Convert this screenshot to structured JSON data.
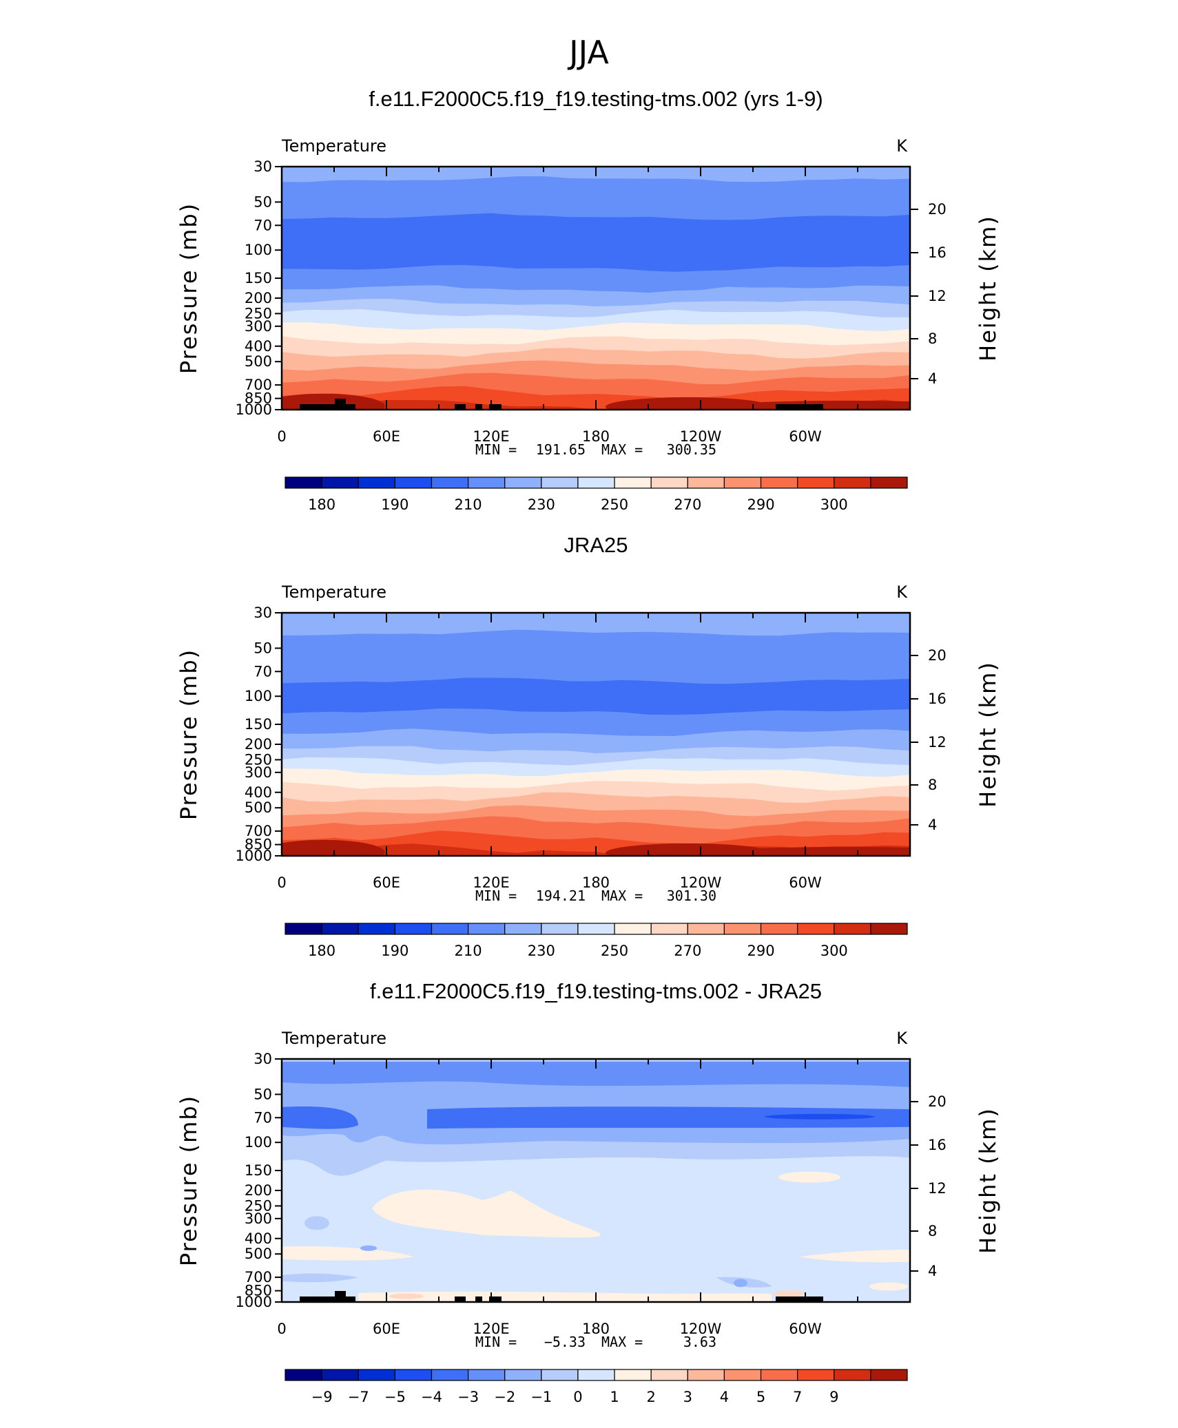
{
  "figure": {
    "title": "JJA"
  },
  "colors": {
    "palette": [
      "#00007f",
      "#0016a8",
      "#0030d4",
      "#1d4ff0",
      "#3f6ff7",
      "#6590f9",
      "#8fb0fb",
      "#b6cdfc",
      "#d6e6fe",
      "#fff1e4",
      "#fed8c4",
      "#fdb79a",
      "#fb9270",
      "#f86d4a",
      "#f24a25",
      "#d32e12",
      "#a91808",
      "#7b0a04"
    ],
    "topo": "#000000",
    "frame": "#000000"
  },
  "chart_data": [
    {
      "type": "heatmap",
      "title": "f.e11.F2000C5.f19_f19.testing-tms.002 (yrs 1-9)",
      "variable": "Temperature",
      "units": "K",
      "ylabel": "Pressure (mb)",
      "ylabel_right": "Height (km)",
      "x_ticks": [
        "0",
        "60E",
        "120E",
        "180",
        "120W",
        "60W"
      ],
      "x_range": [
        0,
        360
      ],
      "y_ticks": [
        30,
        50,
        70,
        100,
        150,
        200,
        250,
        300,
        400,
        500,
        700,
        850,
        1000
      ],
      "y_range": [
        1000,
        30
      ],
      "y_scale": "log",
      "height_ticks": [
        4,
        8,
        12,
        16,
        20
      ],
      "min_label": "MIN =",
      "min": "191.65",
      "max_label": "MAX =",
      "max": "300.35",
      "colorbar_labels": [
        "180",
        "190",
        "210",
        "230",
        "250",
        "270",
        "290",
        "300"
      ]
    },
    {
      "type": "heatmap",
      "title": "JRA25",
      "variable": "Temperature",
      "units": "K",
      "ylabel": "Pressure (mb)",
      "ylabel_right": "Height (km)",
      "x_ticks": [
        "0",
        "60E",
        "120E",
        "180",
        "120W",
        "60W"
      ],
      "x_range": [
        0,
        360
      ],
      "y_ticks": [
        30,
        50,
        70,
        100,
        150,
        200,
        250,
        300,
        400,
        500,
        700,
        850,
        1000
      ],
      "y_range": [
        1000,
        30
      ],
      "y_scale": "log",
      "height_ticks": [
        4,
        8,
        12,
        16,
        20
      ],
      "min_label": "MIN =",
      "min": "194.21",
      "max_label": "MAX =",
      "max": "301.30",
      "colorbar_labels": [
        "180",
        "190",
        "210",
        "230",
        "250",
        "270",
        "290",
        "300"
      ]
    },
    {
      "type": "heatmap",
      "title": "f.e11.F2000C5.f19_f19.testing-tms.002 - JRA25",
      "variable": "Temperature",
      "units": "K",
      "ylabel": "Pressure (mb)",
      "ylabel_right": "Height (km)",
      "x_ticks": [
        "0",
        "60E",
        "120E",
        "180",
        "120W",
        "60W"
      ],
      "x_range": [
        0,
        360
      ],
      "y_ticks": [
        30,
        50,
        70,
        100,
        150,
        200,
        250,
        300,
        400,
        500,
        700,
        850,
        1000
      ],
      "y_range": [
        1000,
        30
      ],
      "y_scale": "log",
      "height_ticks": [
        4,
        8,
        12,
        16,
        20
      ],
      "min_label": "MIN =",
      "min": "−5.33",
      "max_label": "MAX =",
      "max": "3.63",
      "colorbar_labels": [
        "−9",
        "−7",
        "−5",
        "−4",
        "−3",
        "−2",
        "−1",
        "0",
        "1",
        "2",
        "3",
        "4",
        "5",
        "7",
        "9"
      ]
    }
  ]
}
